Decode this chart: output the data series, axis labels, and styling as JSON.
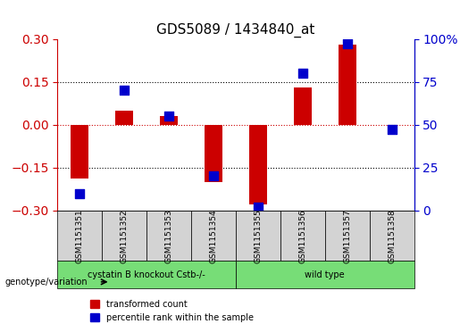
{
  "title": "GDS5089 / 1434840_at",
  "samples": [
    "GSM1151351",
    "GSM1151352",
    "GSM1151353",
    "GSM1151354",
    "GSM1151355",
    "GSM1151356",
    "GSM1151357",
    "GSM1151358"
  ],
  "transformed_count": [
    -0.19,
    0.05,
    0.03,
    -0.2,
    -0.28,
    0.13,
    0.28,
    0.0
  ],
  "percentile_rank": [
    10,
    70,
    55,
    20,
    2,
    80,
    97,
    47
  ],
  "red_color": "#CC0000",
  "blue_color": "#0000CC",
  "ylim_left": [
    -0.3,
    0.3
  ],
  "ylim_right": [
    0,
    100
  ],
  "yticks_left": [
    -0.3,
    -0.15,
    0.0,
    0.15,
    0.3
  ],
  "yticks_right": [
    0,
    25,
    50,
    75,
    100
  ],
  "groups": [
    {
      "label": "cystatin B knockout Cstb-/-",
      "samples": [
        0,
        1,
        2,
        3
      ],
      "color": "#77DD77"
    },
    {
      "label": "wild type",
      "samples": [
        4,
        5,
        6,
        7
      ],
      "color": "#77DD77"
    }
  ],
  "group_label_prefix": "genotype/variation",
  "legend_items": [
    {
      "label": "transformed count",
      "color": "#CC0000"
    },
    {
      "label": "percentile rank within the sample",
      "color": "#0000CC"
    }
  ],
  "bar_width": 0.4,
  "dot_size": 60,
  "hline_y": 0.0,
  "hline_color": "#CC0000",
  "grid_color": "#000000",
  "grid_linestyle": "dotted"
}
